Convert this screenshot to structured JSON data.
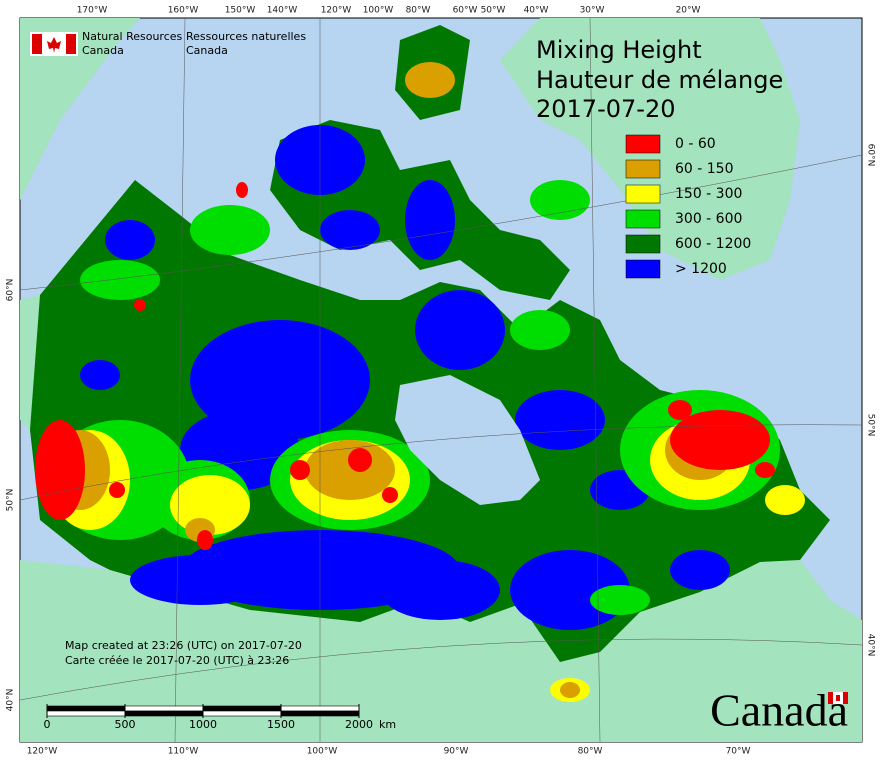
{
  "title": {
    "en": "Mixing Height",
    "fr": "Hauteur de mélange",
    "date": "2017-07-20"
  },
  "agency": {
    "en": [
      "Natural Resources",
      "Canada"
    ],
    "fr": [
      "Ressources naturelles",
      "Canada"
    ]
  },
  "legend": [
    {
      "label": "0 - 60",
      "color": "#ff0000"
    },
    {
      "label": "60 - 150",
      "color": "#d9a000"
    },
    {
      "label": "150 - 300",
      "color": "#ffff00"
    },
    {
      "label": "300 - 600",
      "color": "#00dd00"
    },
    {
      "label": "600 - 1200",
      "color": "#007800"
    },
    {
      "label": "> 1200",
      "color": "#0000ff"
    }
  ],
  "graticule": {
    "top": [
      "170°W",
      "160°W",
      "150°W",
      "140°W",
      "120°W",
      "100°W",
      "80°W",
      "60°W",
      "50°W",
      "40°W",
      "30°W",
      "20°W"
    ],
    "bottom": [
      "120°W",
      "110°W",
      "100°W",
      "90°W",
      "80°W",
      "70°W"
    ],
    "left": [
      "60°N",
      "50°N",
      "40°N"
    ],
    "right": [
      "60°N",
      "50°N",
      "40°N"
    ]
  },
  "credits": [
    "Map created at 23:26 (UTC) on 2017-07-20",
    "Carte créée le 2017-07-20 (UTC) à 23:26"
  ],
  "scale_bar": {
    "ticks": [
      0,
      500,
      1000,
      1500,
      2000
    ],
    "unit": "km"
  },
  "wordmark": "Canada"
}
